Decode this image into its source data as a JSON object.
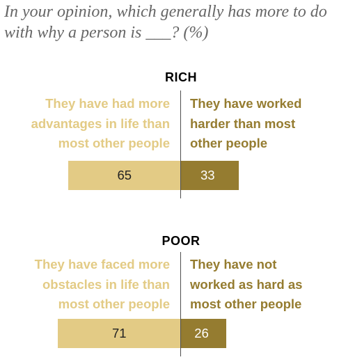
{
  "subtitle": "In your opinion, which generally has more to do with why a person is ___? (%)",
  "colors": {
    "left_bar": "#e3cb85",
    "right_bar": "#957c30",
    "left_text": "#e3cb85",
    "right_text": "#957c30",
    "left_value_text": "#222222",
    "right_value_text": "#ffffff"
  },
  "chart_data": [
    {
      "type": "bar",
      "title": "RICH",
      "categories": [
        "They have had more advantages in life than most other people",
        "They have worked harder than most other people"
      ],
      "values": [
        65,
        33
      ],
      "left_label_lines": [
        "They have had more",
        "advantages in life than",
        "most other people"
      ],
      "right_label_lines": [
        "They have worked",
        "harder than most",
        "other people"
      ]
    },
    {
      "type": "bar",
      "title": "POOR",
      "categories": [
        "They have faced more obstacles in life than most other people",
        "They have not worked as hard as most other people"
      ],
      "values": [
        71,
        26
      ],
      "left_label_lines": [
        "They have faced more",
        "obstacles in life than",
        "most other people"
      ],
      "right_label_lines": [
        "They have not",
        "worked as hard as",
        "most other people"
      ]
    }
  ]
}
